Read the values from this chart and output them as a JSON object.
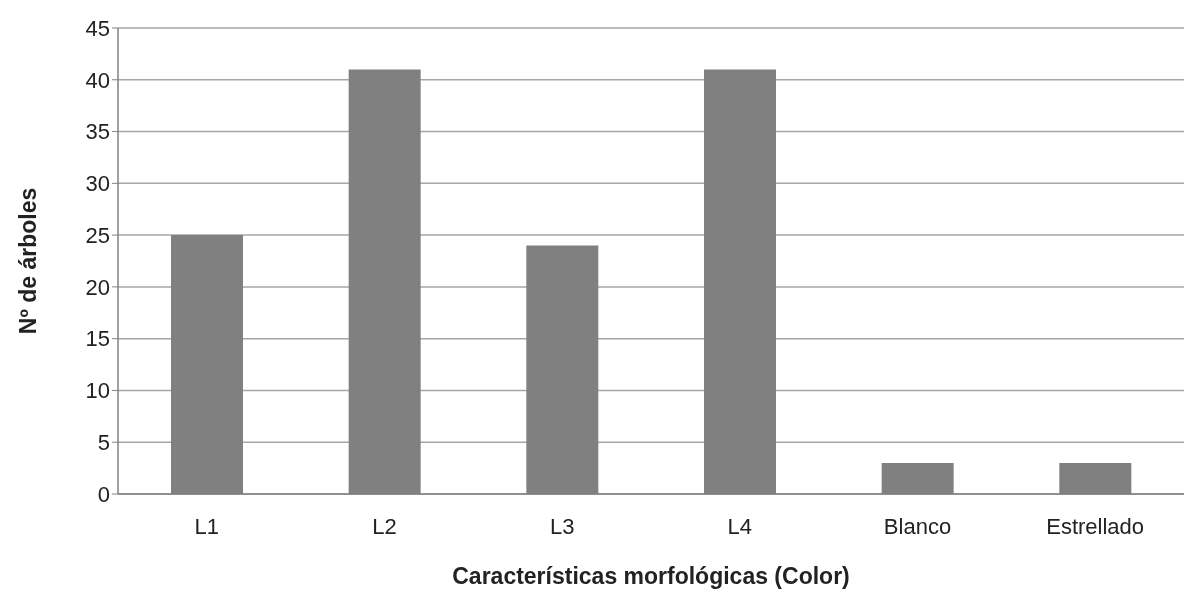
{
  "chart_data": {
    "type": "bar",
    "xlabel": "Características  morfológicas (Color)",
    "ylabel": "Nº de árboles",
    "categories": [
      "L1",
      "L2",
      "L3",
      "L4",
      "Blanco",
      "Estrellado"
    ],
    "values": [
      25,
      41,
      24,
      41,
      3,
      3
    ],
    "color": "#808080",
    "ylim": [
      0,
      45
    ],
    "yticks": [
      0,
      5,
      10,
      15,
      20,
      25,
      30,
      35,
      40,
      45
    ],
    "grid": "y"
  }
}
